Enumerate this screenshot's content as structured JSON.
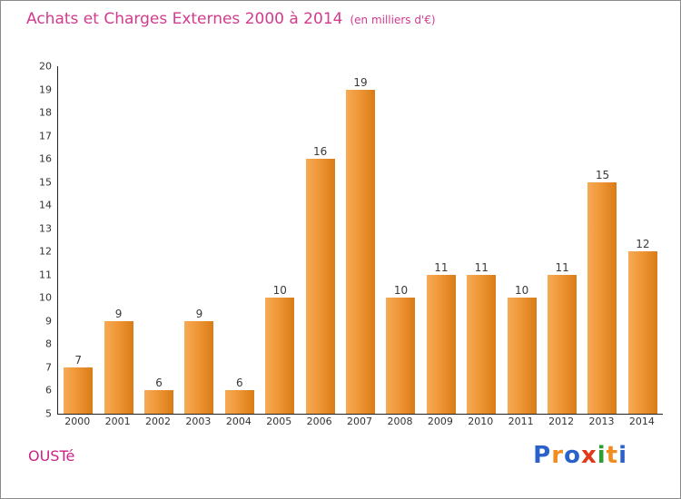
{
  "header": {
    "title": "Achats et Charges Externes 2000 à 2014",
    "subtitle": "(en milliers d'€)"
  },
  "footer": {
    "company": "OUSTé",
    "logo_letters": [
      {
        "ch": "P",
        "color": "#2b62c9"
      },
      {
        "ch": "r",
        "color": "#f28c1e"
      },
      {
        "ch": "o",
        "color": "#2b62c9"
      },
      {
        "ch": "x",
        "color": "#e23a18"
      },
      {
        "ch": "i",
        "color": "#2f9e32"
      },
      {
        "ch": "t",
        "color": "#f28c1e"
      },
      {
        "ch": "i",
        "color": "#2b62c9"
      }
    ]
  },
  "colors": {
    "title": "#d23b8e",
    "bar_gradient_start": "#f6ab55",
    "bar_gradient_end": "#d97c15",
    "axis": "#222222",
    "tick_text": "#333333"
  },
  "chart_data": {
    "type": "bar",
    "title": "Achats et Charges Externes 2000 à 2014",
    "subtitle": "(en milliers d'€)",
    "categories": [
      "2000",
      "2001",
      "2002",
      "2003",
      "2004",
      "2005",
      "2006",
      "2007",
      "2008",
      "2009",
      "2010",
      "2011",
      "2012",
      "2013",
      "2014"
    ],
    "values": [
      7,
      9,
      6,
      9,
      6,
      10,
      16,
      19,
      10,
      11,
      11,
      10,
      11,
      15,
      12
    ],
    "xlabel": "",
    "ylabel": "",
    "ylim": [
      5,
      20
    ],
    "yticks": [
      5,
      6,
      7,
      8,
      9,
      10,
      11,
      12,
      13,
      14,
      15,
      16,
      17,
      18,
      19,
      20
    ],
    "grid": false,
    "legend": false,
    "bar_value_labels": true
  }
}
